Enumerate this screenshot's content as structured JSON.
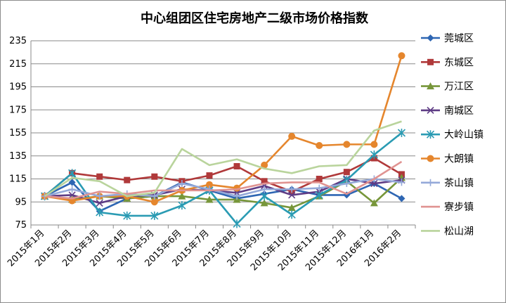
{
  "chart_data": {
    "type": "line",
    "title": "中心组团区住宅房地产二级市场价格指数",
    "xlabel": "",
    "ylabel": "",
    "ylim": [
      75,
      235
    ],
    "yticks": [
      75,
      95,
      115,
      135,
      155,
      175,
      195,
      215,
      235
    ],
    "grid": "horizontal",
    "legend_position": "right",
    "categories": [
      "2015年1月",
      "2015年2月",
      "2015年3月",
      "2015年4月",
      "2015年5月",
      "2015年6月",
      "2015年7月",
      "2015年8月",
      "2015年9月",
      "2015年10月",
      "2015年11月",
      "2015年12月",
      "2016年1月",
      "2016年2月"
    ],
    "series": [
      {
        "name": "莞城区",
        "color": "#2e66b3",
        "marker": "diamond",
        "values": [
          100,
          112,
          87,
          98,
          100,
          112,
          105,
          98,
          102,
          106,
          101,
          101,
          111,
          98
        ]
      },
      {
        "name": "东城区",
        "color": "#b0393a",
        "marker": "square",
        "values": [
          100,
          120,
          117,
          114,
          117,
          113,
          118,
          126,
          113,
          104,
          115,
          121,
          133,
          119
        ]
      },
      {
        "name": "万江区",
        "color": "#77963a",
        "marker": "triangle",
        "values": [
          100,
          97,
          100,
          98,
          100,
          100,
          97,
          97,
          94,
          90,
          100,
          113,
          94,
          116
        ]
      },
      {
        "name": "南城区",
        "color": "#5e3c85",
        "marker": "x",
        "values": [
          100,
          101,
          94,
          100,
          101,
          106,
          105,
          103,
          109,
          101,
          104,
          115,
          111,
          114
        ]
      },
      {
        "name": "大岭山镇",
        "color": "#2a9bb3",
        "marker": "star",
        "values": [
          100,
          120,
          86,
          83,
          83,
          92,
          105,
          76,
          100,
          84,
          101,
          114,
          136,
          155
        ]
      },
      {
        "name": "大朗镇",
        "color": "#e5862d",
        "marker": "circle",
        "values": [
          100,
          96,
          100,
          100,
          95,
          105,
          110,
          107,
          127,
          152,
          144,
          145,
          145,
          222
        ]
      },
      {
        "name": "茶山镇",
        "color": "#94a9d9",
        "marker": "plus",
        "values": [
          100,
          106,
          100,
          102,
          100,
          111,
          106,
          100,
          106,
          106,
          107,
          111,
          115,
          112
        ]
      },
      {
        "name": "寮步镇",
        "color": "#e09391",
        "marker": "none",
        "values": [
          100,
          98,
          104,
          102,
          105,
          105,
          105,
          106,
          111,
          112,
          112,
          102,
          115,
          130
        ]
      },
      {
        "name": "松山湖",
        "color": "#b9d49c",
        "marker": "none",
        "values": [
          100,
          116,
          113,
          100,
          103,
          141,
          127,
          132,
          124,
          120,
          126,
          127,
          157,
          165
        ]
      }
    ]
  }
}
